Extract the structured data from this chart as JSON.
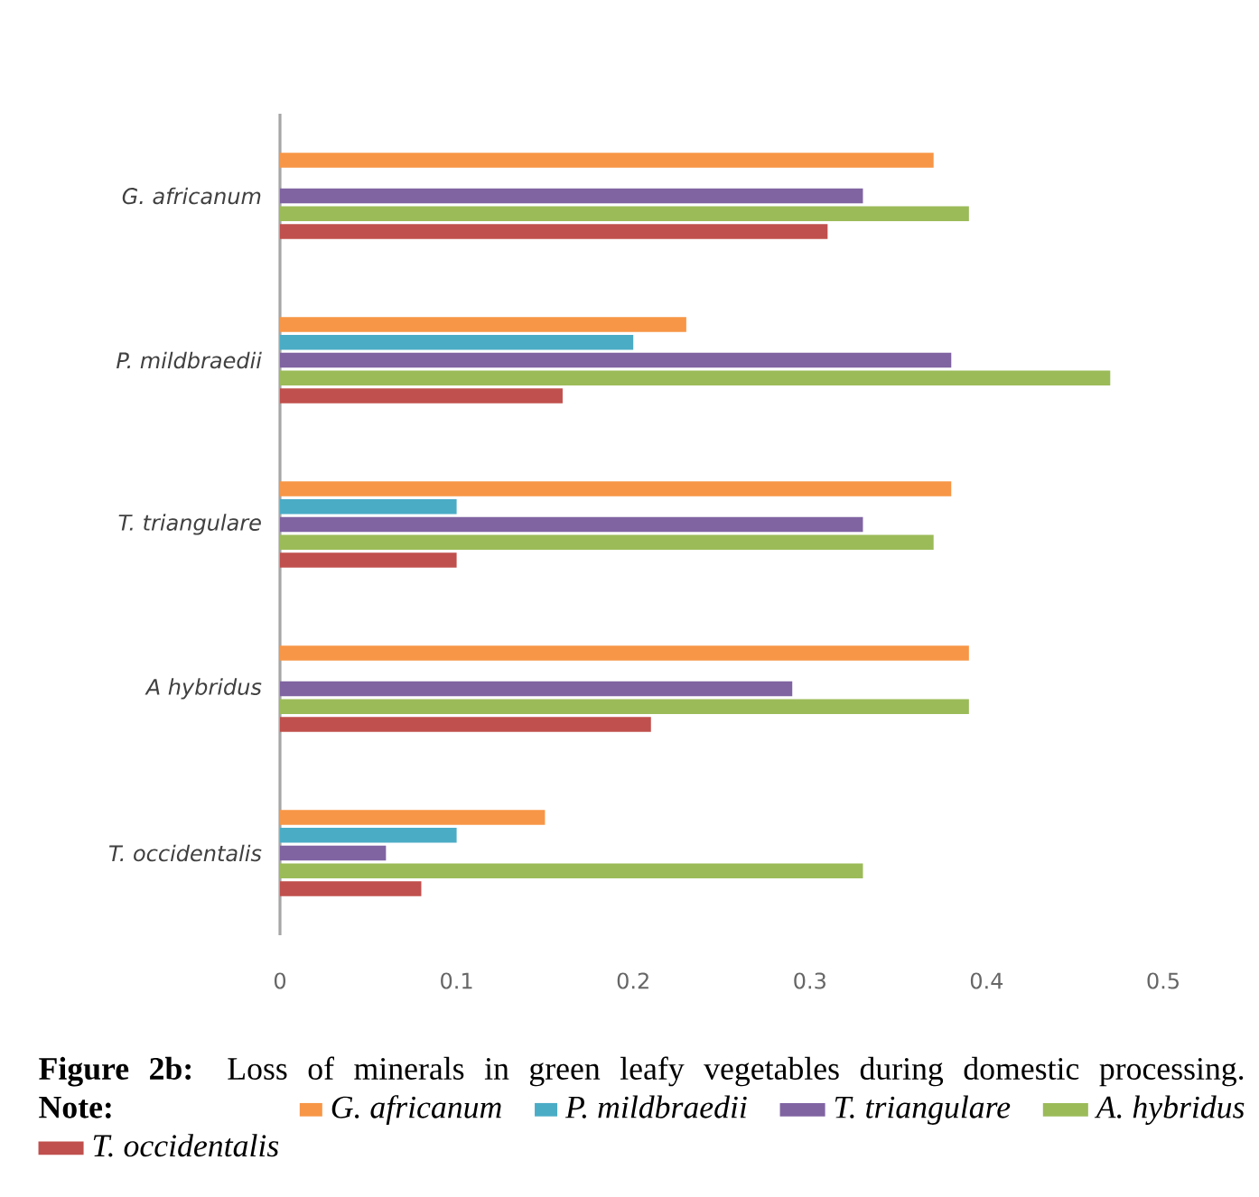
{
  "chart_data": {
    "type": "bar",
    "orientation": "horizontal",
    "title": "**Figure 2b:** Loss of minerals in green leafy vegetables during domestic processing.",
    "annotations": [
      "**Note:**"
    ],
    "categories": [
      "G. africanum",
      "P. mildbraedii",
      "T. triangulare",
      "A hybridus",
      "T. occidentalis"
    ],
    "series": [
      {
        "name": "G. africanum",
        "color": "#f79646",
        "values": [
          0.37,
          0.23,
          0.38,
          0.39,
          0.15
        ]
      },
      {
        "name": "P. mildbraedii",
        "color": "#4bacc6",
        "values": [
          null,
          0.2,
          0.1,
          null,
          0.1
        ]
      },
      {
        "name": "T. triangulare",
        "color": "#8064a2",
        "values": [
          0.33,
          0.38,
          0.33,
          0.29,
          0.06
        ]
      },
      {
        "name": "A. hybridus",
        "color": "#9bbb59",
        "values": [
          0.39,
          0.47,
          0.37,
          0.39,
          0.33
        ]
      },
      {
        "name": "T. occidentalis",
        "color": "#c0504d",
        "values": [
          0.31,
          0.16,
          0.1,
          0.21,
          0.08
        ]
      }
    ],
    "xlim": [
      0,
      0.5
    ],
    "xticks": [
      0,
      0.1,
      0.2,
      0.3,
      0.4,
      0.5
    ],
    "legend": "bottom"
  }
}
